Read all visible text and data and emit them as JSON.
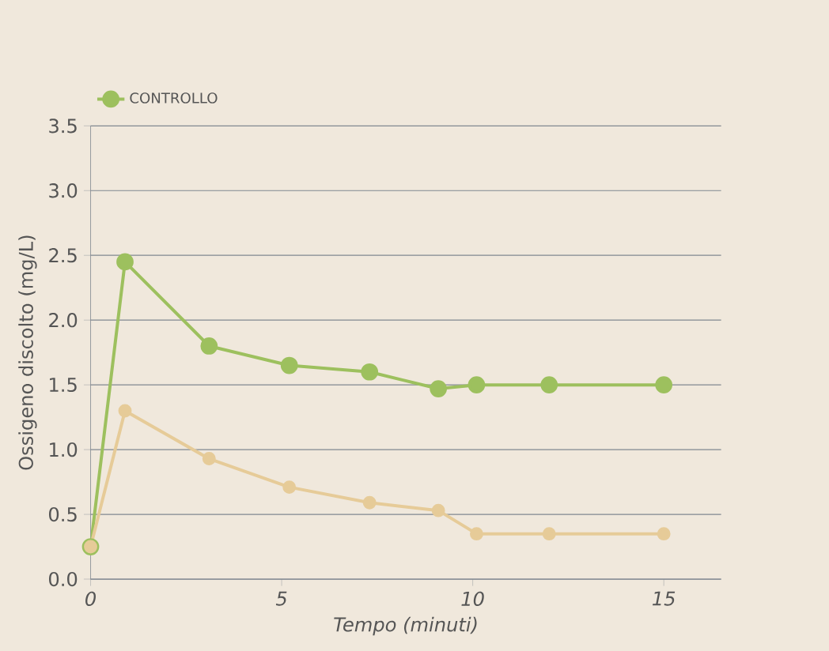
{
  "chart_data": {
    "type": "line",
    "xlabel": "Tempo (minuti)",
    "ylabel": "Ossigeno discolto (mg/L)",
    "xlim": [
      0,
      16.5
    ],
    "xticks": [
      0,
      5,
      10,
      15
    ],
    "ylim": [
      0,
      3.5
    ],
    "yticks": [
      {
        "value": 0,
        "label": "0.0"
      },
      {
        "value": 0.5,
        "label": "0.5"
      },
      {
        "value": 1,
        "label": "1.0"
      },
      {
        "value": 1.5,
        "label": "1.5"
      },
      {
        "value": 2,
        "label": "2.0"
      },
      {
        "value": 2.5,
        "label": "2.5"
      },
      {
        "value": 3,
        "label": "3.0"
      },
      {
        "value": 3.5,
        "label": "3.5"
      }
    ],
    "grid": "y",
    "legend": "top left",
    "marker": "circle",
    "line_style": "solid",
    "series": [
      {
        "name": "CONTROLLO",
        "color": "#9dc05e",
        "x": [
          0,
          0.9,
          3.1,
          5.2,
          7.3,
          9.1,
          10.1,
          12,
          15
        ],
        "values": [
          0.25,
          2.45,
          1.8,
          1.65,
          1.6,
          1.47,
          1.5,
          1.5,
          1.5
        ]
      },
      {
        "color": "#e6cb98",
        "x": [
          0,
          0.9,
          3.1,
          5.2,
          7.3,
          9.1,
          10.1,
          12,
          15
        ],
        "values": [
          0.25,
          1.3,
          0.93,
          0.71,
          0.59,
          0.53,
          0.35,
          0.35,
          0.35
        ]
      }
    ]
  }
}
